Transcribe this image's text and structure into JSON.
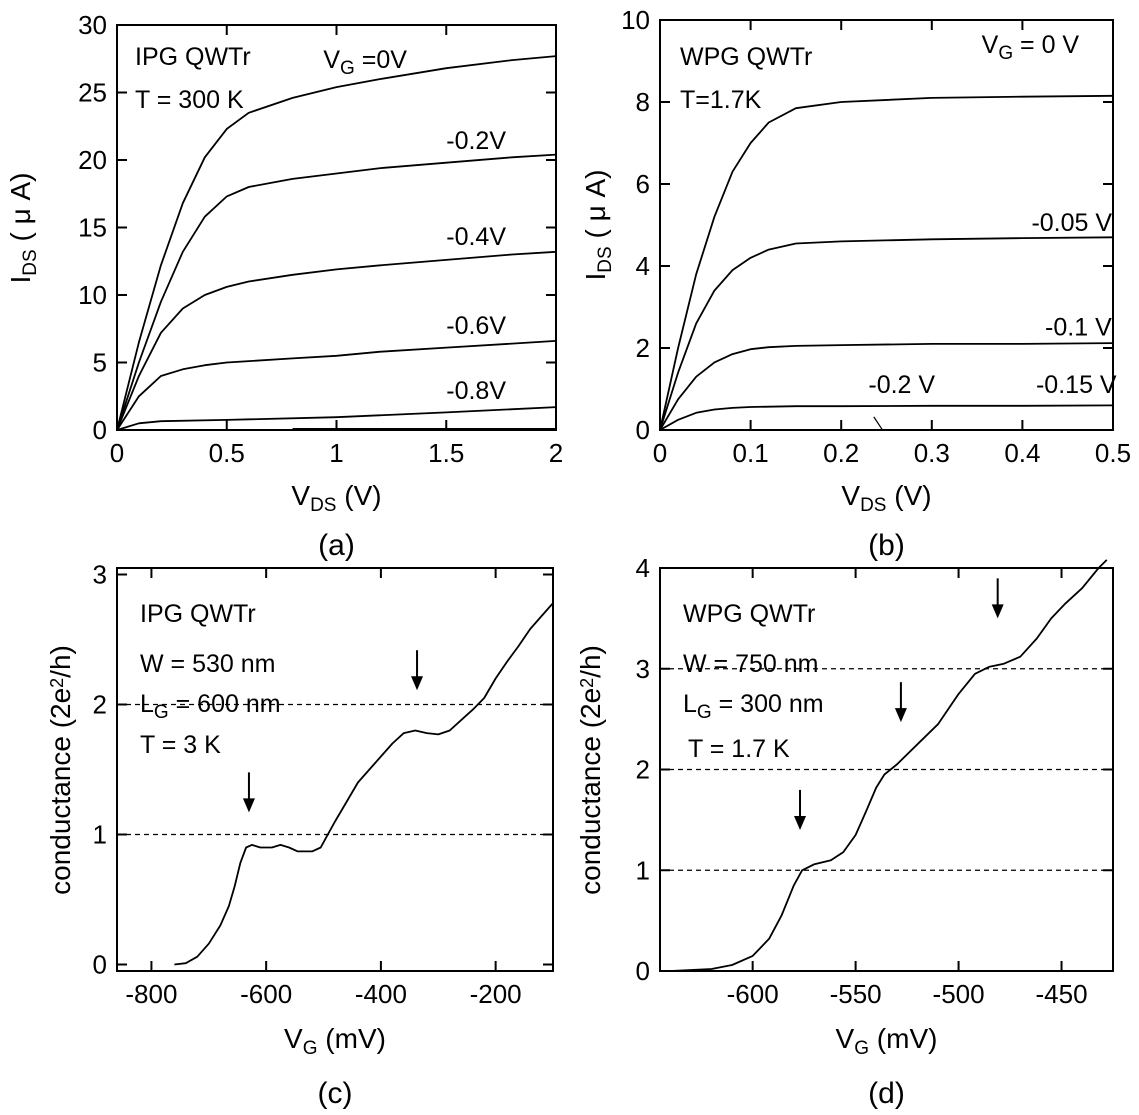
{
  "chart_data": [
    {
      "panel": "a",
      "type": "line",
      "caption": "(a)",
      "ylabel": {
        "main": "I",
        "sub": "DS",
        "rest": " ( μ A)"
      },
      "xlabel": {
        "main": "V",
        "sub": "DS",
        "rest": " (V)"
      },
      "xlim": [
        0,
        2
      ],
      "ylim": [
        0,
        30
      ],
      "xticks": [
        0,
        0.5,
        1,
        1.5,
        2
      ],
      "xtick_labels": [
        "0",
        "0.5",
        "1",
        "1.5",
        "2"
      ],
      "yticks": [
        0,
        5,
        10,
        15,
        20,
        25,
        30
      ],
      "ytick_labels": [
        "0",
        "5",
        "10",
        "15",
        "20",
        "25",
        "30"
      ],
      "annotations": {
        "title": "IPG QWTr",
        "condition": "T = 300 K"
      },
      "series": [
        {
          "label_main": "V",
          "label_sub": "G",
          "label_rest": " =0V",
          "label_x": 0.94,
          "label_y": 26.8,
          "points": [
            [
              0,
              0
            ],
            [
              0.1,
              6.5
            ],
            [
              0.2,
              12.2
            ],
            [
              0.3,
              16.8
            ],
            [
              0.4,
              20.2
            ],
            [
              0.5,
              22.3
            ],
            [
              0.6,
              23.5
            ],
            [
              0.8,
              24.6
            ],
            [
              1.0,
              25.4
            ],
            [
              1.2,
              26.0
            ],
            [
              1.5,
              26.8
            ],
            [
              1.8,
              27.4
            ],
            [
              2.0,
              27.7
            ]
          ]
        },
        {
          "label": "-0.2V",
          "label_x": 1.5,
          "label_y": 20.8,
          "points": [
            [
              0,
              0
            ],
            [
              0.1,
              5.0
            ],
            [
              0.2,
              9.5
            ],
            [
              0.3,
              13.2
            ],
            [
              0.4,
              15.8
            ],
            [
              0.5,
              17.3
            ],
            [
              0.6,
              18.0
            ],
            [
              0.8,
              18.6
            ],
            [
              1.0,
              19.0
            ],
            [
              1.2,
              19.4
            ],
            [
              1.5,
              19.8
            ],
            [
              1.8,
              20.2
            ],
            [
              2.0,
              20.4
            ]
          ]
        },
        {
          "label": "-0.4V",
          "label_x": 1.5,
          "label_y": 13.7,
          "points": [
            [
              0,
              0
            ],
            [
              0.1,
              4.0
            ],
            [
              0.2,
              7.2
            ],
            [
              0.3,
              9.0
            ],
            [
              0.4,
              10.0
            ],
            [
              0.5,
              10.6
            ],
            [
              0.6,
              11.0
            ],
            [
              0.8,
              11.5
            ],
            [
              1.0,
              11.9
            ],
            [
              1.2,
              12.2
            ],
            [
              1.5,
              12.6
            ],
            [
              1.8,
              13.0
            ],
            [
              2.0,
              13.2
            ]
          ]
        },
        {
          "label": "-0.6V",
          "label_x": 1.5,
          "label_y": 7.1,
          "points": [
            [
              0,
              0
            ],
            [
              0.1,
              2.5
            ],
            [
              0.2,
              4.0
            ],
            [
              0.3,
              4.5
            ],
            [
              0.4,
              4.8
            ],
            [
              0.5,
              5.0
            ],
            [
              0.8,
              5.3
            ],
            [
              1.0,
              5.5
            ],
            [
              1.2,
              5.8
            ],
            [
              1.5,
              6.1
            ],
            [
              1.8,
              6.4
            ],
            [
              2.0,
              6.6
            ]
          ]
        },
        {
          "label": "-0.8V",
          "label_x": 1.5,
          "label_y": 2.3,
          "points": [
            [
              0,
              0
            ],
            [
              0.1,
              0.5
            ],
            [
              0.2,
              0.65
            ],
            [
              0.5,
              0.75
            ],
            [
              1.0,
              0.95
            ],
            [
              1.5,
              1.3
            ],
            [
              2.0,
              1.7
            ]
          ]
        },
        {
          "label": "",
          "points": [
            [
              0.8,
              0.08
            ],
            [
              2.0,
              0.08
            ]
          ]
        }
      ]
    },
    {
      "panel": "b",
      "type": "line",
      "caption": "(b)",
      "ylabel": {
        "main": "I",
        "sub": "DS",
        "rest": " ( μ A)"
      },
      "xlabel": {
        "main": "V",
        "sub": "DS",
        "rest": " (V)"
      },
      "xlim": [
        0,
        0.5
      ],
      "ylim": [
        0,
        10
      ],
      "xticks": [
        0,
        0.1,
        0.2,
        0.3,
        0.4,
        0.5
      ],
      "xtick_labels": [
        "0",
        "0.1",
        "0.2",
        "0.3",
        "0.4",
        "0.5"
      ],
      "yticks": [
        0,
        2,
        4,
        6,
        8,
        10
      ],
      "ytick_labels": [
        "0",
        "2",
        "4",
        "6",
        "8",
        "10"
      ],
      "annotations": {
        "title": "WPG QWTr",
        "condition": "T=1.7K"
      },
      "series": [
        {
          "label_main": "V",
          "label_sub": "G",
          "label_rest": " = 0 V",
          "label_x": 0.355,
          "label_y": 9.2,
          "points": [
            [
              0,
              0
            ],
            [
              0.02,
              2.0
            ],
            [
              0.04,
              3.8
            ],
            [
              0.06,
              5.2
            ],
            [
              0.08,
              6.3
            ],
            [
              0.1,
              7.0
            ],
            [
              0.12,
              7.5
            ],
            [
              0.15,
              7.85
            ],
            [
              0.2,
              8.0
            ],
            [
              0.3,
              8.1
            ],
            [
              0.4,
              8.13
            ],
            [
              0.5,
              8.15
            ]
          ]
        },
        {
          "label": "-0.05 V",
          "label_x": 0.41,
          "label_y": 4.85,
          "points": [
            [
              0,
              0
            ],
            [
              0.02,
              1.4
            ],
            [
              0.04,
              2.6
            ],
            [
              0.06,
              3.4
            ],
            [
              0.08,
              3.9
            ],
            [
              0.1,
              4.2
            ],
            [
              0.12,
              4.4
            ],
            [
              0.15,
              4.55
            ],
            [
              0.2,
              4.6
            ],
            [
              0.3,
              4.65
            ],
            [
              0.4,
              4.68
            ],
            [
              0.5,
              4.7
            ]
          ]
        },
        {
          "label": "-0.1 V",
          "label_x": 0.425,
          "label_y": 2.3,
          "points": [
            [
              0,
              0
            ],
            [
              0.02,
              0.75
            ],
            [
              0.04,
              1.3
            ],
            [
              0.06,
              1.65
            ],
            [
              0.08,
              1.85
            ],
            [
              0.1,
              1.97
            ],
            [
              0.12,
              2.02
            ],
            [
              0.15,
              2.05
            ],
            [
              0.2,
              2.07
            ],
            [
              0.3,
              2.1
            ],
            [
              0.4,
              2.1
            ],
            [
              0.5,
              2.12
            ]
          ]
        },
        {
          "label": "-0.15 V",
          "label_x": 0.415,
          "label_y": 0.9,
          "points": [
            [
              0,
              0
            ],
            [
              0.02,
              0.25
            ],
            [
              0.04,
              0.42
            ],
            [
              0.06,
              0.5
            ],
            [
              0.08,
              0.54
            ],
            [
              0.1,
              0.56
            ],
            [
              0.15,
              0.58
            ],
            [
              0.2,
              0.58
            ],
            [
              0.3,
              0.59
            ],
            [
              0.4,
              0.59
            ],
            [
              0.5,
              0.6
            ]
          ]
        },
        {
          "label": "-0.2 V",
          "label_x": 0.23,
          "label_y": 0.9,
          "points": [
            [
              0.0,
              0.0
            ],
            [
              0.5,
              0.0
            ]
          ]
        }
      ],
      "leader_line": [
        [
          0.236,
          0.32
        ],
        [
          0.245,
          0.02
        ]
      ]
    },
    {
      "panel": "c",
      "type": "line",
      "caption": "(c)",
      "ylabel": {
        "main": "conductance (2e",
        "sup": "2",
        "rest": "/h)"
      },
      "xlabel": {
        "main": "V",
        "sub": "G",
        "rest": " (mV)"
      },
      "xlim": [
        -860,
        -100
      ],
      "ylim": [
        -0.05,
        3.05
      ],
      "xticks": [
        -800,
        -600,
        -400,
        -200
      ],
      "xtick_labels": [
        "-800",
        "-600",
        "-400",
        "-200"
      ],
      "yticks": [
        0,
        1,
        2,
        3
      ],
      "ytick_labels": [
        "0",
        "1",
        "2",
        "3"
      ],
      "annotations": {
        "title": "IPG QWTr",
        "width": "W = 530 nm",
        "gate_main": "L",
        "gate_sub": "G",
        "gate_rest": " = 600 nm",
        "condition": "T = 3 K"
      },
      "reference_lines": [
        1,
        2
      ],
      "arrows": [
        [
          -630,
          1.17
        ],
        [
          -337,
          2.11
        ]
      ],
      "series": [
        {
          "label": "",
          "points": [
            [
              -760,
              0.0
            ],
            [
              -740,
              0.01
            ],
            [
              -720,
              0.06
            ],
            [
              -700,
              0.16
            ],
            [
              -680,
              0.3
            ],
            [
              -665,
              0.45
            ],
            [
              -655,
              0.6
            ],
            [
              -645,
              0.78
            ],
            [
              -635,
              0.9
            ],
            [
              -625,
              0.92
            ],
            [
              -610,
              0.9
            ],
            [
              -590,
              0.9
            ],
            [
              -575,
              0.92
            ],
            [
              -560,
              0.9
            ],
            [
              -545,
              0.87
            ],
            [
              -520,
              0.87
            ],
            [
              -505,
              0.9
            ],
            [
              -495,
              0.98
            ],
            [
              -480,
              1.1
            ],
            [
              -460,
              1.25
            ],
            [
              -440,
              1.4
            ],
            [
              -420,
              1.5
            ],
            [
              -400,
              1.6
            ],
            [
              -380,
              1.7
            ],
            [
              -360,
              1.78
            ],
            [
              -340,
              1.8
            ],
            [
              -320,
              1.78
            ],
            [
              -300,
              1.77
            ],
            [
              -280,
              1.8
            ],
            [
              -260,
              1.88
            ],
            [
              -240,
              1.96
            ],
            [
              -220,
              2.05
            ],
            [
              -200,
              2.2
            ],
            [
              -180,
              2.33
            ],
            [
              -160,
              2.45
            ],
            [
              -140,
              2.58
            ],
            [
              -120,
              2.68
            ],
            [
              -100,
              2.78
            ]
          ]
        }
      ]
    },
    {
      "panel": "d",
      "type": "line",
      "caption": "(d)",
      "ylabel": {
        "main": "conductance (2e",
        "sup": "2",
        "rest": "/h)"
      },
      "xlabel": {
        "main": "V",
        "sub": "G",
        "rest": " (mV)"
      },
      "xlim": [
        -645,
        -425
      ],
      "ylim": [
        0,
        4
      ],
      "xticks": [
        -600,
        -550,
        -500,
        -450
      ],
      "xtick_labels": [
        "-600",
        "-550",
        "-500",
        "-450"
      ],
      "yticks": [
        0,
        1,
        2,
        3,
        4
      ],
      "ytick_labels": [
        "0",
        "1",
        "2",
        "3",
        "4"
      ],
      "annotations": {
        "title": "WPG QWTr",
        "width": "W = 750 nm",
        "gate_main": "L",
        "gate_sub": "G",
        "gate_rest": " = 300 nm",
        "condition": "T = 1.7 K"
      },
      "reference_lines": [
        1,
        2,
        3
      ],
      "arrows": [
        [
          -577,
          1.4
        ],
        [
          -528,
          2.47
        ],
        [
          -481,
          3.5
        ]
      ],
      "series": [
        {
          "label": "",
          "points": [
            [
              -640,
              0.0
            ],
            [
              -620,
              0.02
            ],
            [
              -610,
              0.06
            ],
            [
              -600,
              0.15
            ],
            [
              -592,
              0.32
            ],
            [
              -586,
              0.55
            ],
            [
              -580,
              0.85
            ],
            [
              -576,
              1.0
            ],
            [
              -570,
              1.06
            ],
            [
              -562,
              1.1
            ],
            [
              -556,
              1.18
            ],
            [
              -550,
              1.35
            ],
            [
              -545,
              1.58
            ],
            [
              -540,
              1.82
            ],
            [
              -536,
              1.95
            ],
            [
              -530,
              2.05
            ],
            [
              -520,
              2.25
            ],
            [
              -510,
              2.45
            ],
            [
              -500,
              2.75
            ],
            [
              -492,
              2.95
            ],
            [
              -485,
              3.02
            ],
            [
              -478,
              3.05
            ],
            [
              -470,
              3.12
            ],
            [
              -462,
              3.3
            ],
            [
              -455,
              3.5
            ],
            [
              -448,
              3.65
            ],
            [
              -440,
              3.8
            ],
            [
              -432,
              4.0
            ],
            [
              -428,
              4.08
            ]
          ]
        }
      ]
    }
  ]
}
